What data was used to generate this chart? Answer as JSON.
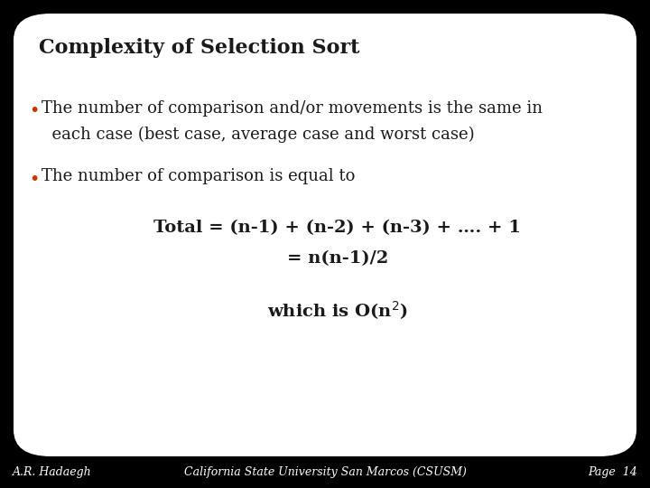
{
  "title": "Complexity of Selection Sort",
  "title_fontsize": 16,
  "title_color": "#1a1a1a",
  "bullet1_line1": "The number of comparison and/or movements is the same in",
  "bullet1_line2": "  each case (best case, average case and worst case)",
  "bullet2": "The number of comparison is equal to",
  "formula1": "Total = (n-1) + (n-2) + (n-3) + …. + 1",
  "formula2": "= n(n-1)/2",
  "bullet_color": "#cc3300",
  "text_color": "#1a1a1a",
  "formula_color": "#1a1a1a",
  "bg_color": "#000000",
  "slide_bg": "#ffffff",
  "footer_bg": "#cc3300",
  "footer_text_color": "#ffffff",
  "footer_left": "A.R. Hadaegh",
  "footer_center": "California State University San Marcos (CSUSM)",
  "footer_right": "Page  14",
  "footer_fontsize": 9,
  "content_fontsize": 13,
  "formula_fontsize": 14
}
